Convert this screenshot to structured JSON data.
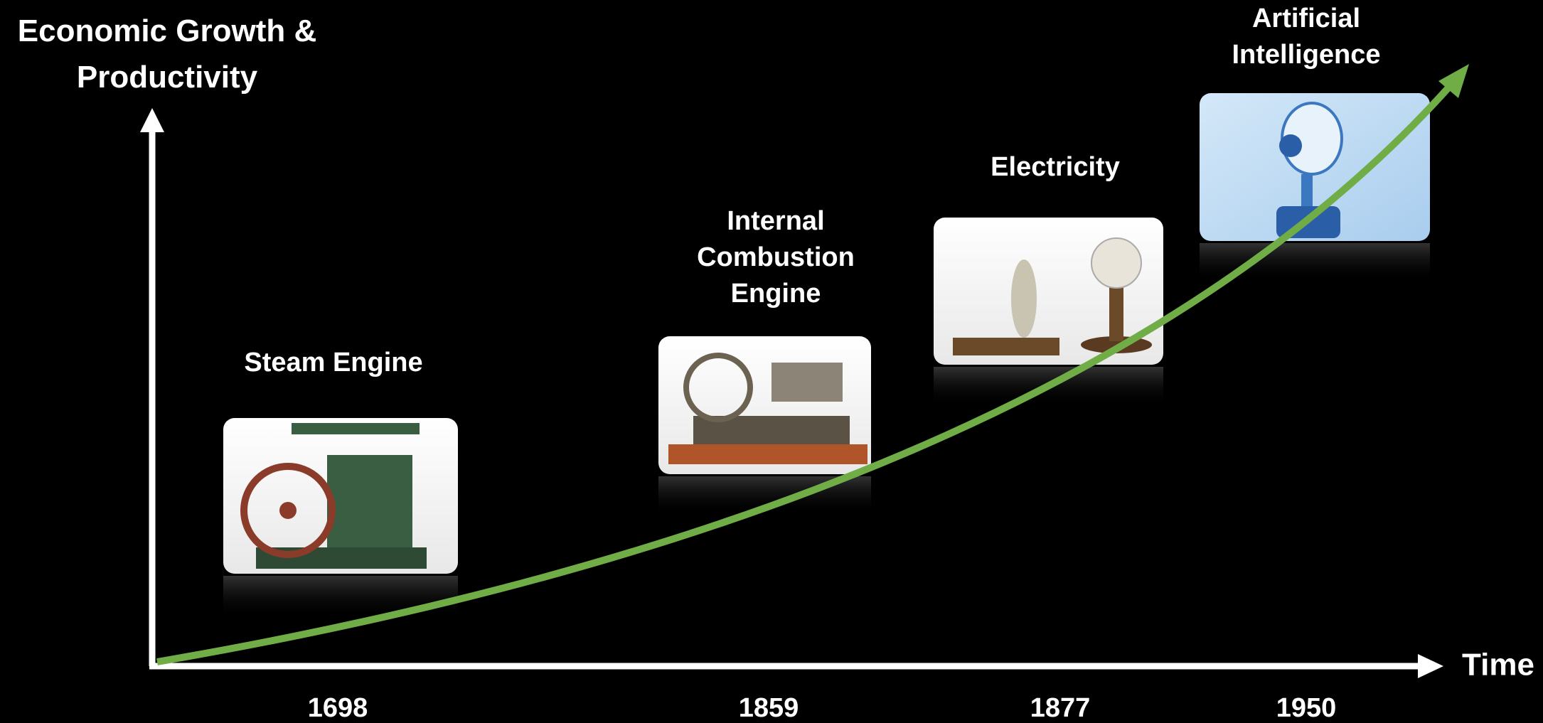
{
  "y_axis_label": [
    "Economic Growth &",
    "Productivity"
  ],
  "x_axis_label": "Time",
  "milestones": [
    {
      "label": [
        "Steam Engine"
      ],
      "year": "1698"
    },
    {
      "label": [
        "Internal",
        "Combustion",
        "Engine"
      ],
      "year": "1859"
    },
    {
      "label": [
        "Electricity"
      ],
      "year": "1877"
    },
    {
      "label": [
        "Artificial",
        "Intelligence"
      ],
      "year": "1950"
    }
  ]
}
